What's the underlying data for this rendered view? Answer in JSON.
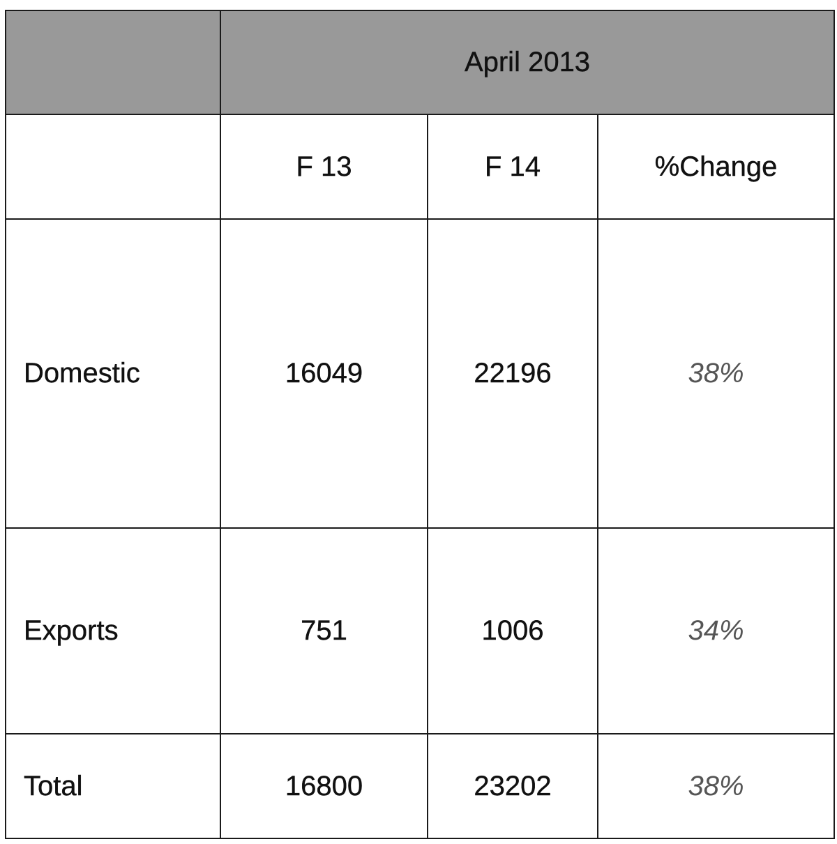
{
  "chart_data": {
    "type": "table",
    "header_group": "April 2013",
    "columns": [
      "F 13",
      "F 14",
      "%Change"
    ],
    "rows": [
      {
        "label": "Domestic",
        "values": [
          "16049",
          "22196",
          "38%"
        ]
      },
      {
        "label": "Exports",
        "values": [
          "751",
          "1006",
          "34%"
        ]
      },
      {
        "label": "Total",
        "values": [
          "16800",
          "23202",
          "38%"
        ]
      }
    ]
  },
  "colors": {
    "header_band": "#999999",
    "grid_line": "#1a1a1a",
    "percent_text": "#555555"
  }
}
